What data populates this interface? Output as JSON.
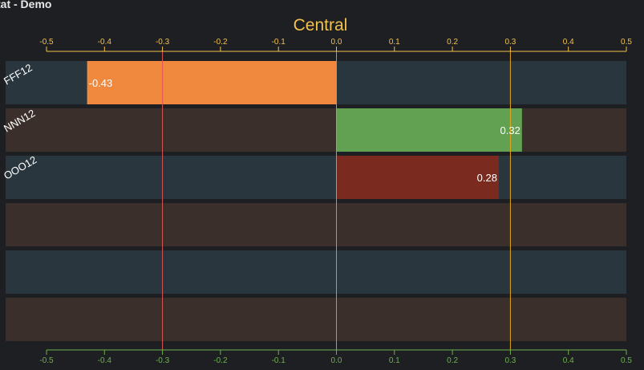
{
  "app": {
    "title": "tat - Demo"
  },
  "chart_data": {
    "type": "bar",
    "orientation": "horizontal",
    "title": "Central",
    "xlim": [
      -0.5,
      0.5
    ],
    "ticks": [
      -0.5,
      -0.4,
      -0.3,
      -0.2,
      -0.1,
      0.0,
      0.1,
      0.2,
      0.3,
      0.4,
      0.5
    ],
    "tick_labels": [
      "-0.5",
      "-0.4",
      "-0.3",
      "-0.2",
      "-0.1",
      "0.0",
      "0.1",
      "0.2",
      "0.3",
      "0.4",
      "0.5"
    ],
    "categories": [
      "FFF12",
      "NNN12",
      "OOO12",
      "",
      "",
      ""
    ],
    "values": [
      -0.43,
      0.32,
      0.28,
      null,
      null,
      null
    ],
    "value_labels": [
      "-0.43",
      "0.32",
      "0.28",
      "",
      "",
      ""
    ],
    "bar_colors": [
      "#f0883e",
      "#62a052",
      "#7b2a20",
      null,
      null,
      null
    ],
    "row_colors": [
      "#29363e",
      "#3a2f2a"
    ],
    "reference_lines": [
      {
        "x": -0.3,
        "color": "#e05555"
      },
      {
        "x": 0.0,
        "color": "#9a9a9a"
      },
      {
        "x": 0.3,
        "color": "#e6a817"
      }
    ],
    "top_axis_color": "#f2c14e",
    "bottom_axis_color": "#6fb04f",
    "grid": false,
    "legend": "none"
  }
}
